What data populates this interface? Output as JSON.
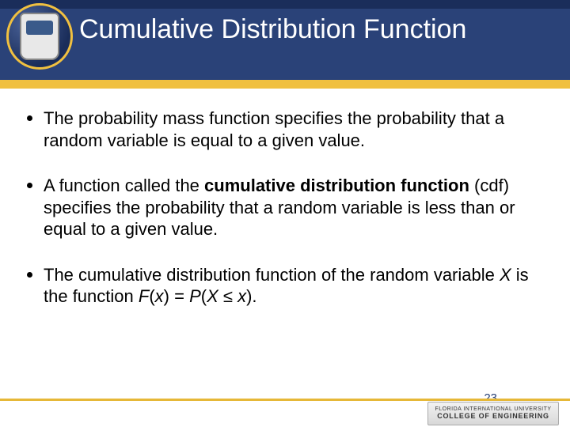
{
  "header": {
    "title": "Cumulative Distribution Function",
    "band_colors": {
      "top": "#1a2d5a",
      "mid": "#2a4278",
      "accent": "#f0c040"
    }
  },
  "bullets": [
    {
      "html": "The probability mass function specifies the probability that a random variable is equal to a given value."
    },
    {
      "html": "A function called the <b>cumulative distribution function</b> (cdf)  specifies the probability that a random variable is less than or equal to a given value."
    },
    {
      "html": "The cumulative distribution function of the random variable <span class=\"ital\">X</span> is the function <span class=\"ital\">F</span>(<span class=\"ital\">x</span>) = <span class=\"ital\">P</span>(<span class=\"ital\">X</span> ≤ <span class=\"ital\">x</span>)."
    }
  ],
  "footer": {
    "page_number": "23",
    "badge_line1": "FLORIDA INTERNATIONAL UNIVERSITY",
    "badge_line2": "COLLEGE OF ENGINEERING"
  }
}
